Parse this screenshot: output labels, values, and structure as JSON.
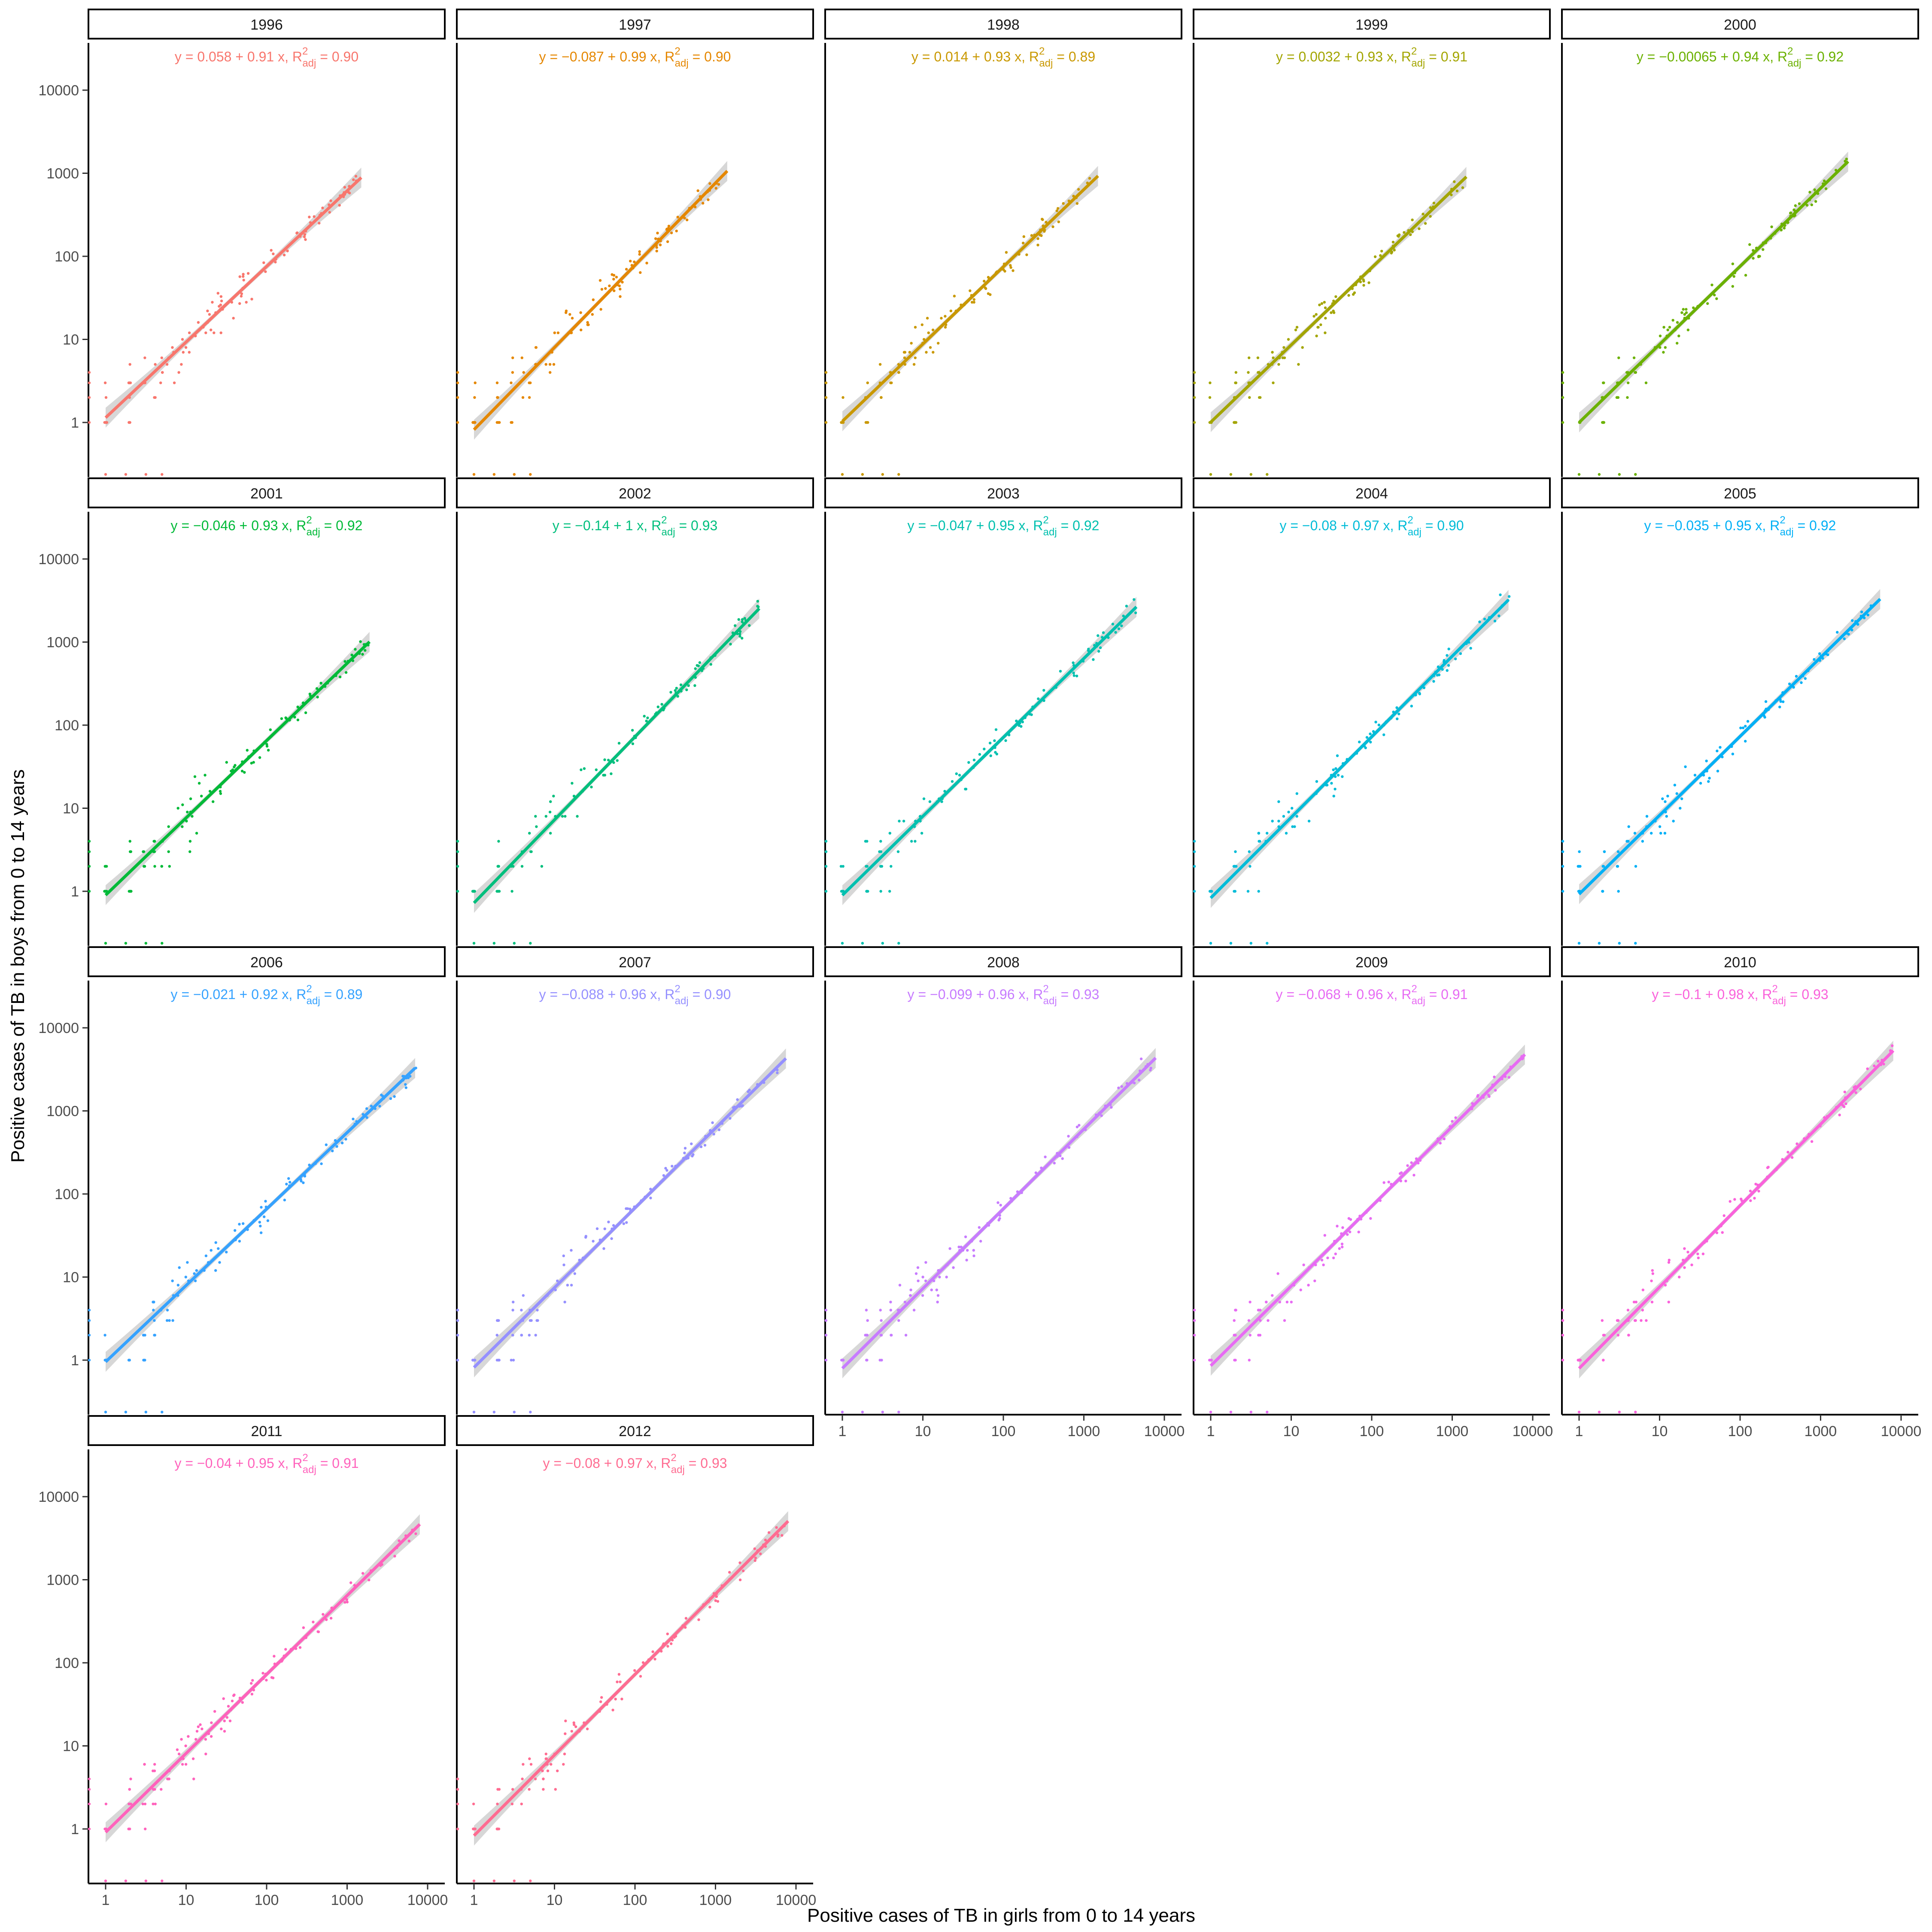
{
  "figure": {
    "xlabel": "Positive cases of TB in girls from 0 to 14 years",
    "ylabel": "Positive cases of TB in boys from 0 to 14 years"
  },
  "chart_data": {
    "type": "scatter",
    "facets": [
      "1996",
      "1997",
      "1998",
      "1999",
      "2000",
      "2001",
      "2002",
      "2003",
      "2004",
      "2005",
      "2006",
      "2007",
      "2008",
      "2009",
      "2010",
      "2011",
      "2012"
    ],
    "xscale": "log10",
    "yscale": "log10",
    "x_ticks": [
      1,
      10,
      100,
      1000,
      10000
    ],
    "x_tick_labels": [
      "1",
      "10",
      "100",
      "1000",
      "10000"
    ],
    "y_ticks": [
      1,
      10,
      100,
      1000,
      10000
    ],
    "y_tick_labels": [
      "1",
      "10",
      "100",
      "1000",
      "10000"
    ],
    "grid": false,
    "smoothing": "linear fit with grey confidence band",
    "panels": [
      {
        "year": "1996",
        "color": "#F8766D",
        "intercept": 0.058,
        "slope": 0.91,
        "x_max": 1500,
        "equation_lhs": "y = 0.058 + 0.91 x, R",
        "r2": "0.90"
      },
      {
        "year": "1997",
        "color": "#E58700",
        "intercept": -0.087,
        "slope": 0.99,
        "x_max": 1400,
        "equation_lhs": "y = −0.087 + 0.99 x, R",
        "r2": "0.90"
      },
      {
        "year": "1998",
        "color": "#C99800",
        "intercept": 0.014,
        "slope": 0.93,
        "x_max": 1500,
        "equation_lhs": "y = 0.014 + 0.93 x, R",
        "r2": "0.89"
      },
      {
        "year": "1999",
        "color": "#A3A500",
        "intercept": 0.0032,
        "slope": 0.93,
        "x_max": 1500,
        "equation_lhs": "y = 0.0032 + 0.93 x, R",
        "r2": "0.91"
      },
      {
        "year": "2000",
        "color": "#6BB100",
        "intercept": -0.00065,
        "slope": 0.94,
        "x_max": 2200,
        "equation_lhs": "y = −0.00065 + 0.94 x, R",
        "r2": "0.92"
      },
      {
        "year": "2001",
        "color": "#00BA38",
        "intercept": -0.046,
        "slope": 0.93,
        "x_max": 1900,
        "equation_lhs": "y = −0.046 + 0.93 x, R",
        "r2": "0.92"
      },
      {
        "year": "2002",
        "color": "#00BF7D",
        "intercept": -0.14,
        "slope": 1.0,
        "x_max": 3500,
        "equation_lhs": "y = −0.14 + 1 x, R",
        "r2": "0.93"
      },
      {
        "year": "2003",
        "color": "#00C0AF",
        "intercept": -0.047,
        "slope": 0.95,
        "x_max": 4500,
        "equation_lhs": "y = −0.047 + 0.95 x, R",
        "r2": "0.92"
      },
      {
        "year": "2004",
        "color": "#00BCD8",
        "intercept": -0.08,
        "slope": 0.97,
        "x_max": 5000,
        "equation_lhs": "y = −0.08 + 0.97 x, R",
        "r2": "0.90"
      },
      {
        "year": "2005",
        "color": "#00B0F6",
        "intercept": -0.035,
        "slope": 0.95,
        "x_max": 5500,
        "equation_lhs": "y = −0.035 + 0.95 x, R",
        "r2": "0.92"
      },
      {
        "year": "2006",
        "color": "#35A2FF",
        "intercept": -0.021,
        "slope": 0.92,
        "x_max": 7000,
        "equation_lhs": "y = −0.021 + 0.92 x, R",
        "r2": "0.89"
      },
      {
        "year": "2007",
        "color": "#9590FF",
        "intercept": -0.088,
        "slope": 0.96,
        "x_max": 7500,
        "equation_lhs": "y = −0.088 + 0.96 x, R",
        "r2": "0.90"
      },
      {
        "year": "2008",
        "color": "#C77CFF",
        "intercept": -0.099,
        "slope": 0.96,
        "x_max": 7800,
        "equation_lhs": "y = −0.099 + 0.96 x, R",
        "r2": "0.93"
      },
      {
        "year": "2009",
        "color": "#E76BF3",
        "intercept": -0.068,
        "slope": 0.96,
        "x_max": 8000,
        "equation_lhs": "y = −0.068 + 0.96 x, R",
        "r2": "0.91"
      },
      {
        "year": "2010",
        "color": "#FA62DB",
        "intercept": -0.1,
        "slope": 0.98,
        "x_max": 8000,
        "equation_lhs": "y = −0.1 + 0.98 x, R",
        "r2": "0.93"
      },
      {
        "year": "2011",
        "color": "#FF62BC",
        "intercept": -0.04,
        "slope": 0.95,
        "x_max": 8000,
        "equation_lhs": "y = −0.04 + 0.95 x, R",
        "r2": "0.91"
      },
      {
        "year": "2012",
        "color": "#FF6C91",
        "intercept": -0.08,
        "slope": 0.97,
        "x_max": 8000,
        "equation_lhs": "y = −0.08 + 0.97 x, R",
        "r2": "0.93"
      }
    ],
    "r2_subscript": "adj",
    "r2_superscript": "2",
    "r2_equals": " = "
  }
}
